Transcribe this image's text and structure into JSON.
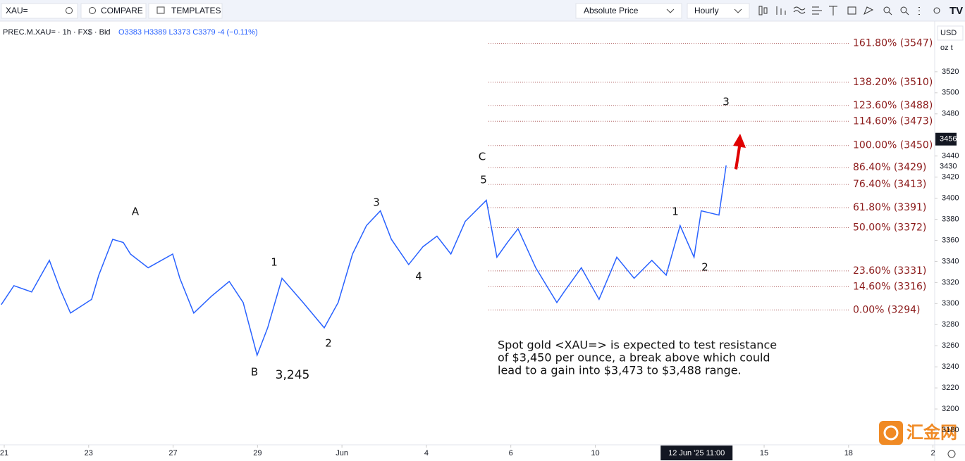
{
  "toolbar": {
    "symbol": "XAU=",
    "compare": "COMPARE",
    "templates": "TEMPLATES",
    "price_mode": "Absolute Price",
    "interval": "Hourly"
  },
  "legend": {
    "symbol": "PREC.M.XAU= · 1h · FX$ · Bid",
    "ohlc": "O3383 H3389 L3373 C3379 -4 (−0.11%)"
  },
  "axis_units": {
    "currency": "USD",
    "unit": "oz t"
  },
  "watermark": "汇金网",
  "chart_data": {
    "type": "line",
    "color": "#2962ff",
    "x": [
      -0.07,
      0.23,
      0.65,
      1.07,
      1.32,
      1.57,
      2.07,
      2.24,
      2.57,
      2.82,
      2.99,
      3.41,
      3.99,
      4.16,
      4.49,
      4.91,
      5.33,
      5.66,
      5.99,
      6.24,
      6.58,
      7.08,
      7.58,
      7.91,
      8.25,
      8.58,
      8.91,
      9.17,
      9.58,
      9.92,
      10.25,
      10.58,
      10.92,
      11.42,
      11.67,
      11.92,
      12.17,
      12.59,
      13.09,
      13.26,
      13.67,
      14.09,
      14.51,
      14.92,
      15.34,
      15.68,
      16.01,
      16.34,
      16.51,
      16.93,
      17.1
    ],
    "values": [
      3299,
      3317,
      3311,
      3341,
      3314,
      3291,
      3304,
      3327,
      3361,
      3358,
      3347,
      3334,
      3347,
      3324,
      3291,
      3307,
      3321,
      3301,
      3251,
      3277,
      3324,
      3301,
      3277,
      3301,
      3347,
      3374,
      3388,
      3361,
      3337,
      3354,
      3364,
      3347,
      3378,
      3398,
      3344,
      3358,
      3371,
      3334,
      3301,
      3311,
      3334,
      3304,
      3344,
      3324,
      3341,
      3327,
      3374,
      3344,
      3388,
      3384,
      3431
    ],
    "xlim": [
      -0.1,
      22.04
    ],
    "ylim": [
      3166,
      3568
    ],
    "xticks": [
      {
        "value": 0,
        "label": "21"
      },
      {
        "value": 2,
        "label": "23"
      },
      {
        "value": 4,
        "label": "27"
      },
      {
        "value": 6,
        "label": "29"
      },
      {
        "value": 8,
        "label": "Jun"
      },
      {
        "value": 10,
        "label": "4"
      },
      {
        "value": 12,
        "label": "6"
      },
      {
        "value": 14,
        "label": "10"
      },
      {
        "value": 18,
        "label": "15"
      },
      {
        "value": 20,
        "label": "18"
      },
      {
        "value": 22,
        "label": "2"
      }
    ],
    "crosshair_x": {
      "value": 16.4,
      "label": "12 Jun '25   11:00"
    },
    "yticks": [
      3180,
      3200,
      3220,
      3240,
      3260,
      3280,
      3300,
      3320,
      3340,
      3360,
      3380,
      3400,
      3420,
      3440,
      3480,
      3500,
      3520
    ],
    "price_labels": [
      3456,
      3430
    ],
    "fib_levels": [
      {
        "label": "161.80% (3547)",
        "value": 3547
      },
      {
        "label": "138.20% (3510)",
        "value": 3510
      },
      {
        "label": "123.60% (3488)",
        "value": 3488
      },
      {
        "label": "114.60% (3473)",
        "value": 3473
      },
      {
        "label": "100.00% (3450)",
        "value": 3450
      },
      {
        "label": "86.40% (3429)",
        "value": 3429
      },
      {
        "label": "76.40% (3413)",
        "value": 3413
      },
      {
        "label": "61.80% (3391)",
        "value": 3391
      },
      {
        "label": "50.00% (3372)",
        "value": 3372
      },
      {
        "label": "23.60% (3331)",
        "value": 3331
      },
      {
        "label": "14.60% (3316)",
        "value": 3316
      },
      {
        "label": "0.00% (3294)",
        "value": 3294
      }
    ],
    "annotations": [
      "A",
      "B",
      "3,245",
      "1",
      "2",
      "3",
      "4",
      "5",
      "C",
      "1",
      "2",
      "3"
    ],
    "note": [
      "Spot gold <XAU=> is expected to test resistance",
      "of $3,450 per ounce, a break above which could",
      "lead to a gain into $3,473 to $3,488 range."
    ]
  }
}
